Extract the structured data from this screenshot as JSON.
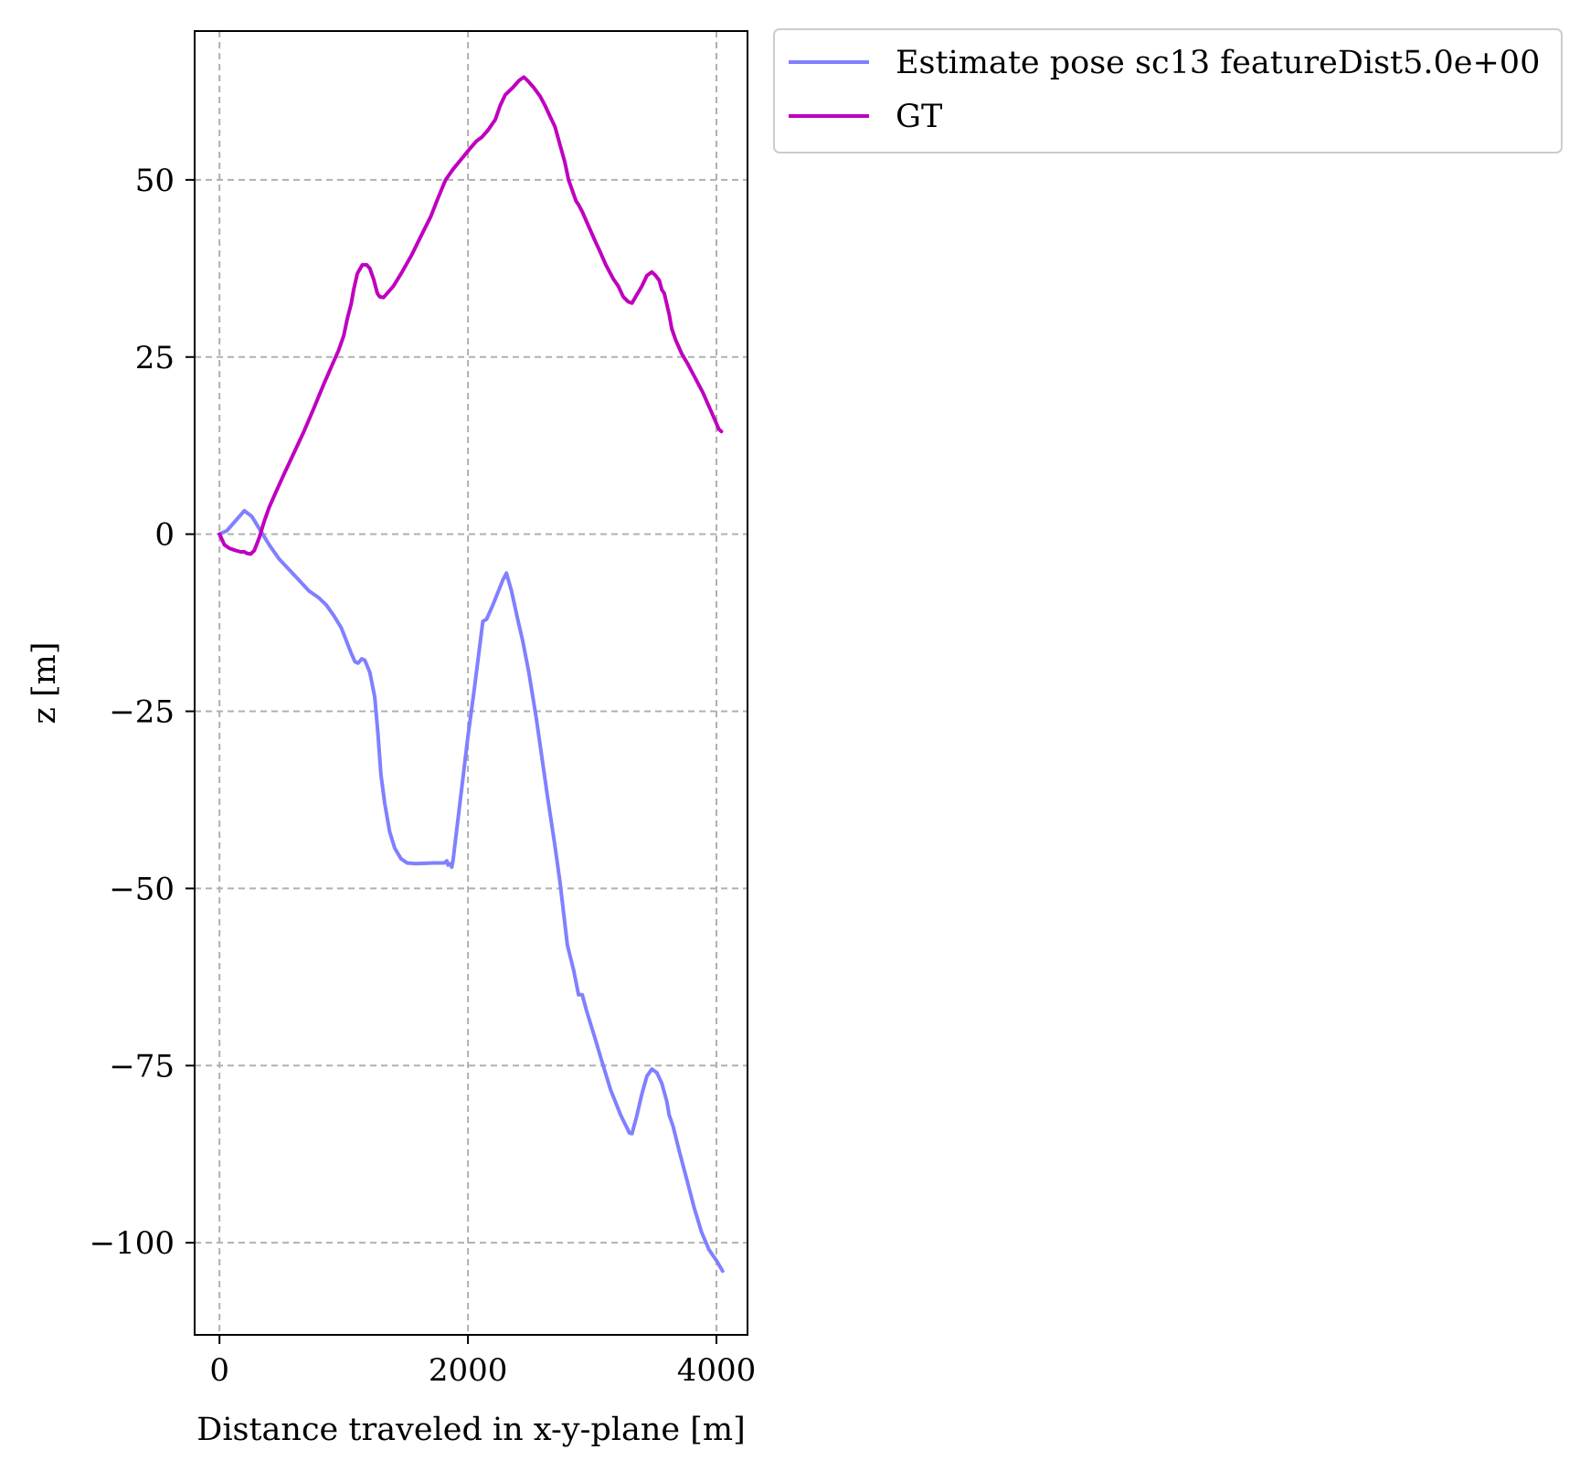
{
  "chart_data": {
    "type": "line",
    "title": "",
    "xlabel": "Distance traveled in x-y-plane [m]",
    "ylabel": "z [m]",
    "xlim": [
      -200,
      4250
    ],
    "ylim": [
      -113,
      71
    ],
    "xticks": [
      0,
      2000,
      4000
    ],
    "yticks": [
      50,
      25,
      0,
      -25,
      -50,
      -75,
      -100
    ],
    "xtick_labels": [
      "0",
      "2000",
      "4000"
    ],
    "ytick_labels": [
      "50",
      "25",
      "0",
      "−25",
      "−50",
      "−75",
      "−100"
    ],
    "grid": true,
    "legend_position": "outside-top-right",
    "series": [
      {
        "name": "Estimate pose sc13 featureDist5.0e+00",
        "color": "#8080ff",
        "points": [
          [
            0,
            0
          ],
          [
            60,
            0.5
          ],
          [
            200,
            3.3
          ],
          [
            260,
            2.5
          ],
          [
            330,
            0.5
          ],
          [
            400,
            -1.5
          ],
          [
            480,
            -3.5
          ],
          [
            560,
            -5
          ],
          [
            640,
            -6.5
          ],
          [
            720,
            -8
          ],
          [
            800,
            -9
          ],
          [
            860,
            -10
          ],
          [
            920,
            -11.5
          ],
          [
            980,
            -13.2
          ],
          [
            1020,
            -15
          ],
          [
            1060,
            -16.8
          ],
          [
            1090,
            -18
          ],
          [
            1115,
            -18.2
          ],
          [
            1145,
            -17.6
          ],
          [
            1170,
            -17.8
          ],
          [
            1210,
            -19.5
          ],
          [
            1250,
            -23
          ],
          [
            1275,
            -28
          ],
          [
            1300,
            -34
          ],
          [
            1330,
            -38
          ],
          [
            1370,
            -42
          ],
          [
            1410,
            -44.3
          ],
          [
            1460,
            -45.8
          ],
          [
            1510,
            -46.4
          ],
          [
            1580,
            -46.5
          ],
          [
            1730,
            -46.4
          ],
          [
            1810,
            -46.4
          ],
          [
            1830,
            -46.1
          ],
          [
            1840,
            -46.7
          ],
          [
            1855,
            -46.5
          ],
          [
            1870,
            -47
          ],
          [
            1880,
            -46
          ],
          [
            2000,
            -28.5
          ],
          [
            2050,
            -22
          ],
          [
            2120,
            -12.3
          ],
          [
            2150,
            -12
          ],
          [
            2200,
            -10
          ],
          [
            2280,
            -6.5
          ],
          [
            2310,
            -5.5
          ],
          [
            2350,
            -8
          ],
          [
            2400,
            -12
          ],
          [
            2440,
            -15
          ],
          [
            2490,
            -19.5
          ],
          [
            2550,
            -26
          ],
          [
            2640,
            -37
          ],
          [
            2700,
            -44
          ],
          [
            2740,
            -49
          ],
          [
            2800,
            -58
          ],
          [
            2850,
            -61.5
          ],
          [
            2890,
            -65
          ],
          [
            2920,
            -65
          ],
          [
            2950,
            -67
          ],
          [
            3020,
            -71
          ],
          [
            3080,
            -74.5
          ],
          [
            3150,
            -78.5
          ],
          [
            3230,
            -82
          ],
          [
            3300,
            -84.5
          ],
          [
            3320,
            -84.6
          ],
          [
            3360,
            -82
          ],
          [
            3400,
            -79
          ],
          [
            3440,
            -76.5
          ],
          [
            3480,
            -75.5
          ],
          [
            3520,
            -76
          ],
          [
            3560,
            -77.5
          ],
          [
            3600,
            -80
          ],
          [
            3620,
            -82
          ],
          [
            3650,
            -83.5
          ],
          [
            3700,
            -87
          ],
          [
            3760,
            -91
          ],
          [
            3820,
            -95
          ],
          [
            3880,
            -98.5
          ],
          [
            3940,
            -101
          ],
          [
            4000,
            -102.5
          ],
          [
            4050,
            -104
          ]
        ]
      },
      {
        "name": "GT",
        "color": "#bf00bf",
        "points": [
          [
            0,
            0
          ],
          [
            40,
            -1.5
          ],
          [
            80,
            -2
          ],
          [
            130,
            -2.3
          ],
          [
            170,
            -2.5
          ],
          [
            200,
            -2.5
          ],
          [
            220,
            -2.7
          ],
          [
            250,
            -2.8
          ],
          [
            280,
            -2.3
          ],
          [
            320,
            -0.5
          ],
          [
            360,
            1.8
          ],
          [
            400,
            3.8
          ],
          [
            450,
            5.8
          ],
          [
            520,
            8.5
          ],
          [
            600,
            11.5
          ],
          [
            680,
            14.5
          ],
          [
            760,
            17.8
          ],
          [
            840,
            21.2
          ],
          [
            910,
            24
          ],
          [
            960,
            26
          ],
          [
            1000,
            28
          ],
          [
            1030,
            30.5
          ],
          [
            1060,
            32.5
          ],
          [
            1080,
            34.5
          ],
          [
            1110,
            36.8
          ],
          [
            1150,
            38
          ],
          [
            1185,
            38
          ],
          [
            1210,
            37.5
          ],
          [
            1240,
            36
          ],
          [
            1270,
            34
          ],
          [
            1290,
            33.5
          ],
          [
            1320,
            33.4
          ],
          [
            1350,
            34
          ],
          [
            1400,
            35
          ],
          [
            1470,
            37
          ],
          [
            1550,
            39.5
          ],
          [
            1620,
            42
          ],
          [
            1700,
            44.8
          ],
          [
            1760,
            47.5
          ],
          [
            1820,
            50
          ],
          [
            1880,
            51.5
          ],
          [
            1950,
            53
          ],
          [
            2020,
            54.5
          ],
          [
            2070,
            55.5
          ],
          [
            2110,
            56
          ],
          [
            2160,
            57
          ],
          [
            2220,
            58.5
          ],
          [
            2260,
            60.5
          ],
          [
            2300,
            62
          ],
          [
            2360,
            63
          ],
          [
            2410,
            64
          ],
          [
            2450,
            64.5
          ],
          [
            2480,
            64
          ],
          [
            2530,
            63
          ],
          [
            2580,
            61.8
          ],
          [
            2620,
            60.5
          ],
          [
            2660,
            59
          ],
          [
            2700,
            57.5
          ],
          [
            2740,
            55
          ],
          [
            2780,
            52.5
          ],
          [
            2810,
            50
          ],
          [
            2840,
            48.5
          ],
          [
            2870,
            47
          ],
          [
            2890,
            46.5
          ],
          [
            2920,
            45.5
          ],
          [
            2970,
            43.5
          ],
          [
            3020,
            41.5
          ],
          [
            3060,
            40
          ],
          [
            3110,
            38
          ],
          [
            3170,
            36
          ],
          [
            3210,
            35
          ],
          [
            3250,
            33.5
          ],
          [
            3290,
            32.8
          ],
          [
            3320,
            32.6
          ],
          [
            3350,
            33.5
          ],
          [
            3400,
            35
          ],
          [
            3440,
            36.5
          ],
          [
            3480,
            37
          ],
          [
            3510,
            36.5
          ],
          [
            3540,
            35.8
          ],
          [
            3560,
            34.5
          ],
          [
            3580,
            34
          ],
          [
            3600,
            32.5
          ],
          [
            3620,
            31
          ],
          [
            3640,
            29
          ],
          [
            3670,
            27.5
          ],
          [
            3720,
            25.5
          ],
          [
            3770,
            24
          ],
          [
            3830,
            22
          ],
          [
            3890,
            20
          ],
          [
            3940,
            18
          ],
          [
            3990,
            16
          ],
          [
            4020,
            14.8
          ],
          [
            4040,
            14.5
          ]
        ]
      }
    ]
  }
}
